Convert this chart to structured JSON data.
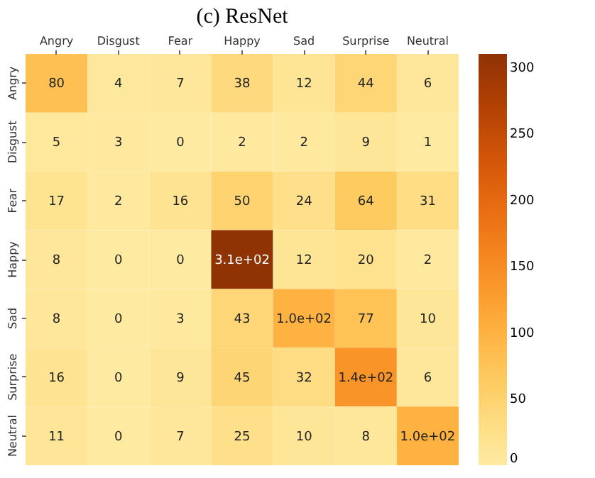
{
  "chart_data": {
    "type": "heatmap",
    "title": "(c) ResNet",
    "categories": [
      "Angry",
      "Disgust",
      "Fear",
      "Happy",
      "Sad",
      "Surprise",
      "Neutral"
    ],
    "y_categories": [
      "Angry",
      "Disgust",
      "Fear",
      "Happy",
      "Sad",
      "Surprise",
      "Neutral"
    ],
    "cells": [
      [
        80,
        4,
        7,
        38,
        12,
        44,
        6
      ],
      [
        5,
        3,
        0,
        2,
        2,
        9,
        1
      ],
      [
        17,
        2,
        16,
        50,
        24,
        64,
        31
      ],
      [
        8,
        0,
        0,
        310,
        12,
        20,
        2
      ],
      [
        8,
        0,
        3,
        43,
        100,
        77,
        10
      ],
      [
        16,
        0,
        9,
        45,
        32,
        140,
        6
      ],
      [
        11,
        0,
        7,
        25,
        10,
        8,
        100
      ]
    ],
    "cell_labels": [
      [
        "80",
        "4",
        "7",
        "38",
        "12",
        "44",
        "6"
      ],
      [
        "5",
        "3",
        "0",
        "2",
        "2",
        "9",
        "1"
      ],
      [
        "17",
        "2",
        "16",
        "50",
        "24",
        "64",
        "31"
      ],
      [
        "8",
        "0",
        "0",
        "3.1e+02",
        "12",
        "20",
        "2"
      ],
      [
        "8",
        "0",
        "3",
        "43",
        "1.0e+02",
        "77",
        "10"
      ],
      [
        "16",
        "0",
        "9",
        "45",
        "32",
        "1.4e+02",
        "6"
      ],
      [
        "11",
        "0",
        "7",
        "25",
        "10",
        "8",
        "1.0e+02"
      ]
    ],
    "clim": [
      0,
      310
    ],
    "cticks": [
      0,
      50,
      100,
      150,
      200,
      250,
      300
    ]
  }
}
